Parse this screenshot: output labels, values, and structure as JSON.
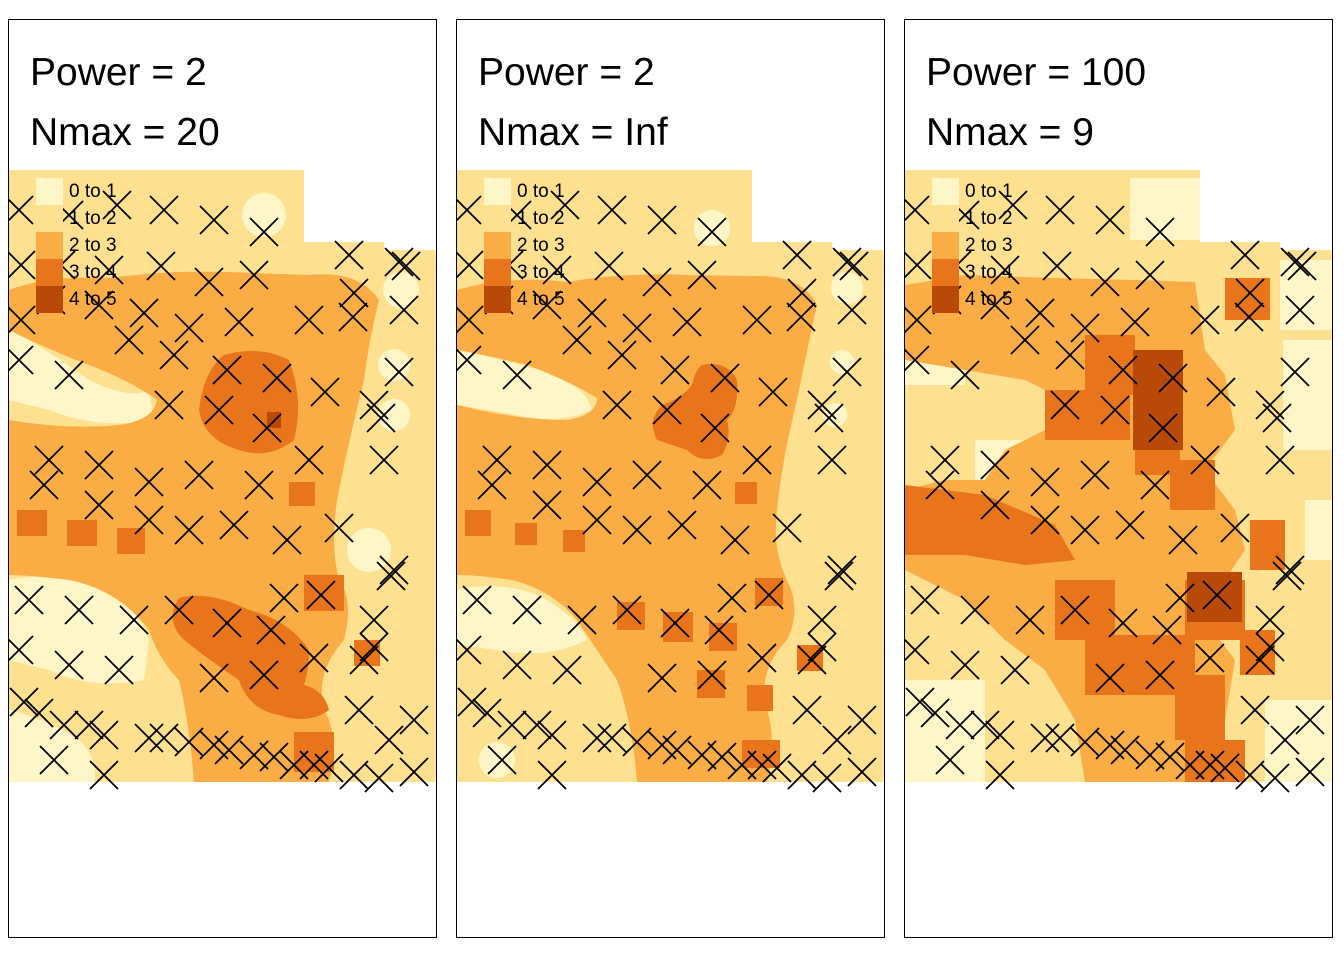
{
  "legend": {
    "colors": [
      "#FFF6C8",
      "#FEE091",
      "#FBAD45",
      "#E8741B",
      "#B84908"
    ],
    "labels": [
      "0 to 1",
      "1 to 2",
      "2 to 3",
      "3 to 4",
      "4 to 5"
    ]
  },
  "panels": [
    {
      "title_line1": "Power = 2",
      "title_line2": "Nmax = 20"
    },
    {
      "title_line1": "Power = 2",
      "title_line2": "Nmax = Inf"
    },
    {
      "title_line1": "Power = 100",
      "title_line2": "Nmax = 9"
    }
  ]
}
